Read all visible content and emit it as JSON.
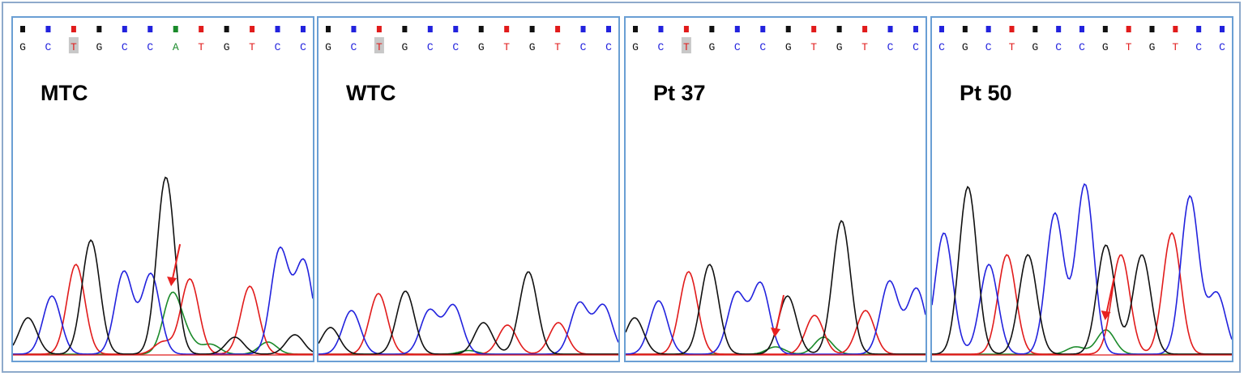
{
  "colors": {
    "G": "#111111",
    "C": "#2222dd",
    "T": "#e11b1b",
    "A": "#1a8a2a",
    "arrow": "#e82020"
  },
  "panels": [
    {
      "id": "mtc",
      "label": "MTC",
      "bases": [
        "G",
        "C",
        "T",
        "G",
        "C",
        "C",
        "A",
        "T",
        "G",
        "T",
        "C",
        "C"
      ],
      "highlight_index": 2,
      "arrow": true,
      "traces": {
        "G": [
          [
            0.05,
            0.15
          ],
          [
            0.26,
            0.47
          ],
          [
            0.51,
            0.73
          ],
          [
            0.74,
            0.07
          ],
          [
            0.94,
            0.08
          ]
        ],
        "C": [
          [
            0.13,
            0.24
          ],
          [
            0.37,
            0.34
          ],
          [
            0.46,
            0.33
          ],
          [
            0.89,
            0.43
          ],
          [
            0.97,
            0.38
          ]
        ],
        "T": [
          [
            0.21,
            0.37
          ],
          [
            0.59,
            0.31
          ],
          [
            0.79,
            0.28
          ],
          [
            0.5,
            0.05
          ]
        ],
        "A": [
          [
            0.53,
            0.24
          ],
          [
            0.58,
            0.06
          ],
          [
            0.85,
            0.05
          ],
          [
            0.66,
            0.04
          ]
        ]
      }
    },
    {
      "id": "wtc",
      "label": "WTC",
      "bases": [
        "G",
        "C",
        "T",
        "G",
        "C",
        "C",
        "G",
        "T",
        "G",
        "T",
        "C",
        "C"
      ],
      "highlight_index": 2,
      "arrow": false,
      "traces": {
        "G": [
          [
            0.04,
            0.11
          ],
          [
            0.29,
            0.26
          ],
          [
            0.55,
            0.13
          ],
          [
            0.7,
            0.34
          ]
        ],
        "C": [
          [
            0.11,
            0.18
          ],
          [
            0.37,
            0.18
          ],
          [
            0.45,
            0.2
          ],
          [
            0.87,
            0.21
          ],
          [
            0.95,
            0.2
          ]
        ],
        "T": [
          [
            0.2,
            0.25
          ],
          [
            0.63,
            0.12
          ],
          [
            0.8,
            0.13
          ]
        ],
        "A": [
          [
            0.5,
            0.015
          ]
        ]
      }
    },
    {
      "id": "pt37",
      "label": "Pt 37",
      "bases": [
        "G",
        "C",
        "T",
        "G",
        "C",
        "C",
        "G",
        "T",
        "G",
        "T",
        "C",
        "C"
      ],
      "highlight_index": 2,
      "arrow": true,
      "traces": {
        "G": [
          [
            0.03,
            0.15
          ],
          [
            0.28,
            0.37
          ],
          [
            0.54,
            0.24
          ],
          [
            0.72,
            0.55
          ]
        ],
        "C": [
          [
            0.11,
            0.22
          ],
          [
            0.37,
            0.25
          ],
          [
            0.45,
            0.29
          ],
          [
            0.88,
            0.3
          ],
          [
            0.97,
            0.27
          ]
        ],
        "T": [
          [
            0.21,
            0.34
          ],
          [
            0.63,
            0.16
          ],
          [
            0.8,
            0.18
          ]
        ],
        "A": [
          [
            0.5,
            0.03
          ],
          [
            0.66,
            0.07
          ]
        ]
      }
    },
    {
      "id": "pt50",
      "label": "Pt 50",
      "bases": [
        "C",
        "G",
        "C",
        "T",
        "G",
        "C",
        "C",
        "G",
        "T",
        "G",
        "T",
        "C",
        "C"
      ],
      "highlight_index": -1,
      "arrow": true,
      "traces": {
        "G": [
          [
            0.12,
            0.69
          ],
          [
            0.32,
            0.41
          ],
          [
            0.58,
            0.45
          ],
          [
            0.7,
            0.41
          ]
        ],
        "C": [
          [
            0.04,
            0.5
          ],
          [
            0.19,
            0.37
          ],
          [
            0.41,
            0.58
          ],
          [
            0.51,
            0.7
          ],
          [
            0.86,
            0.65
          ],
          [
            0.95,
            0.25
          ]
        ],
        "T": [
          [
            0.25,
            0.41
          ],
          [
            0.63,
            0.41
          ],
          [
            0.8,
            0.5
          ]
        ],
        "A": [
          [
            0.58,
            0.1
          ],
          [
            0.48,
            0.03
          ]
        ]
      }
    }
  ]
}
